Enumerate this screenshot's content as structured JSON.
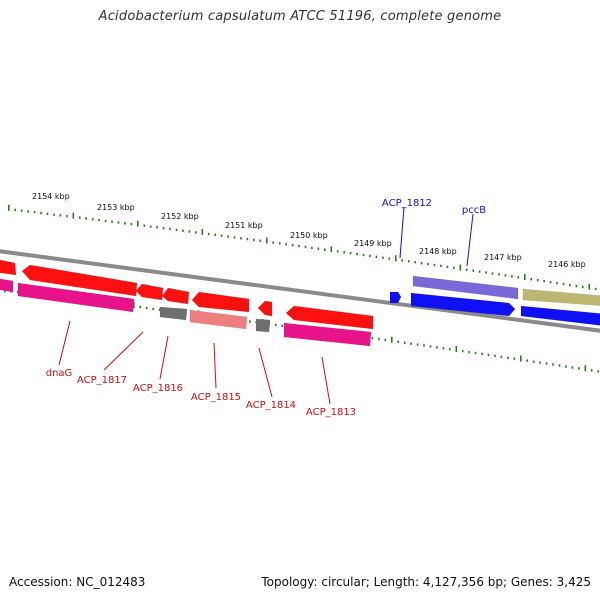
{
  "title": "Acidobacterium capsulatum ATCC 51196, complete genome",
  "footer": {
    "accession": "Accession: NC_012483",
    "summary": "Topology: circular; Length: 4,127,356 bp; Genes: 3,425"
  },
  "colors": {
    "backbone": "#8a8a8a",
    "tick": "#2a7d1e",
    "forward_label": "#1414c8",
    "reverse_label": "#cc1010",
    "red": "#ff1010",
    "magenta": "#e8138a",
    "gray": "#6e6e6e",
    "salmon": "#ef7f7f",
    "blue": "#1010f5",
    "lavender": "#7a68d8",
    "olive": "#bdb671"
  },
  "scale_labels": [
    "2154 kbp",
    "2153 kbp",
    "2152 kbp",
    "2151 kbp",
    "2150 kbp",
    "2149 kbp",
    "2148 kbp",
    "2147 kbp",
    "2146 kbp"
  ],
  "gene_labels": {
    "forward": [
      "ACP_1812",
      "pccB"
    ],
    "reverse": [
      "dnaG",
      "ACP_1817",
      "ACP_1816",
      "ACP_1815",
      "ACP_1814",
      "ACP_1813"
    ]
  }
}
